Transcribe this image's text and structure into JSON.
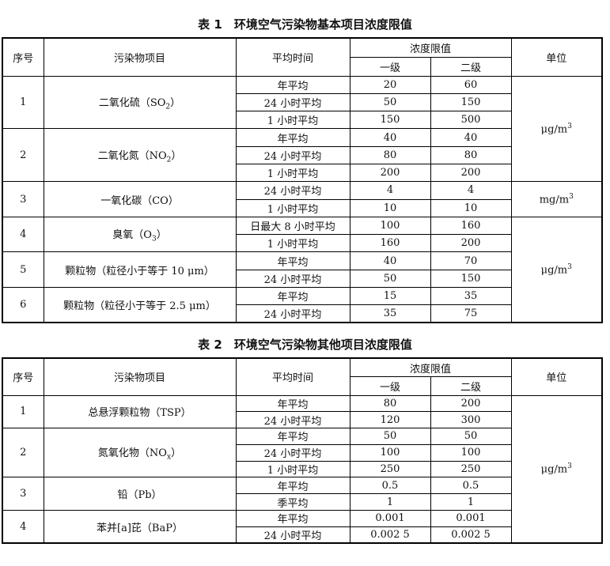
{
  "tables": [
    {
      "title": "表 1　环境空气污染物基本项目浓度限值",
      "headers": {
        "no": "序号",
        "item": "污染物项目",
        "time": "平均时间",
        "limit": "浓度限值",
        "grade1": "一级",
        "grade2": "二级",
        "unit": "单位"
      },
      "groups": [
        {
          "no": "1",
          "item": "二氧化硫（SO",
          "sub": "2",
          "tail": "）",
          "unit_group": 0,
          "rows": [
            [
              "年平均",
              "20",
              "60"
            ],
            [
              "24 小时平均",
              "50",
              "150"
            ],
            [
              "1 小时平均",
              "150",
              "500"
            ]
          ]
        },
        {
          "no": "2",
          "item": "二氧化氮（NO",
          "sub": "2",
          "tail": "）",
          "unit_group": 0,
          "rows": [
            [
              "年平均",
              "40",
              "40"
            ],
            [
              "24 小时平均",
              "80",
              "80"
            ],
            [
              "1 小时平均",
              "200",
              "200"
            ]
          ]
        },
        {
          "no": "3",
          "item": "一氧化碳（CO",
          "sub": "",
          "tail": "）",
          "unit_group": 1,
          "rows": [
            [
              "24 小时平均",
              "4",
              "4"
            ],
            [
              "1 小时平均",
              "10",
              "10"
            ]
          ]
        },
        {
          "no": "4",
          "item": "臭氧（O",
          "sub": "3",
          "tail": "）",
          "unit_group": 2,
          "rows": [
            [
              "日最大 8 小时平均",
              "100",
              "160"
            ],
            [
              "1 小时平均",
              "160",
              "200"
            ]
          ]
        },
        {
          "no": "5",
          "item": "颗粒物（粒径小于等于 10 μm",
          "sub": "",
          "tail": "）",
          "unit_group": 2,
          "rows": [
            [
              "年平均",
              "40",
              "70"
            ],
            [
              "24 小时平均",
              "50",
              "150"
            ]
          ]
        },
        {
          "no": "6",
          "item": "颗粒物（粒径小于等于 2.5 μm",
          "sub": "",
          "tail": "）",
          "unit_group": 2,
          "rows": [
            [
              "年平均",
              "15",
              "35"
            ],
            [
              "24 小时平均",
              "35",
              "75"
            ]
          ]
        }
      ],
      "units": [
        {
          "base": "μg/m",
          "sup": "3",
          "span": 6
        },
        {
          "base": "mg/m",
          "sup": "3",
          "span": 2
        },
        {
          "base": "μg/m",
          "sup": "3",
          "span": 6
        }
      ]
    },
    {
      "title": "表 2　环境空气污染物其他项目浓度限值",
      "headers": {
        "no": "序号",
        "item": "污染物项目",
        "time": "平均时间",
        "limit": "浓度限值",
        "grade1": "一级",
        "grade2": "二级",
        "unit": "单位"
      },
      "groups": [
        {
          "no": "1",
          "item": "总悬浮颗粒物（TSP",
          "sub": "",
          "tail": "）",
          "rows": [
            [
              "年平均",
              "80",
              "200"
            ],
            [
              "24 小时平均",
              "120",
              "300"
            ]
          ]
        },
        {
          "no": "2",
          "item": "氮氧化物（NO",
          "sub": "x",
          "tail": "）",
          "rows": [
            [
              "年平均",
              "50",
              "50"
            ],
            [
              "24 小时平均",
              "100",
              "100"
            ],
            [
              "1 小时平均",
              "250",
              "250"
            ]
          ]
        },
        {
          "no": "3",
          "item": "铅（Pb",
          "sub": "",
          "tail": "）",
          "rows": [
            [
              "年平均",
              "0.5",
              "0.5"
            ],
            [
              "季平均",
              "1",
              "1"
            ]
          ]
        },
        {
          "no": "4",
          "item": "苯并[a]芘（BaP",
          "sub": "",
          "tail": "）",
          "rows": [
            [
              "年平均",
              "0.001",
              "0.001"
            ],
            [
              "24 小时平均",
              "0.002 5",
              "0.002 5"
            ]
          ]
        }
      ],
      "units": [
        {
          "base": "μg/m",
          "sup": "3",
          "span": 9
        }
      ]
    }
  ]
}
